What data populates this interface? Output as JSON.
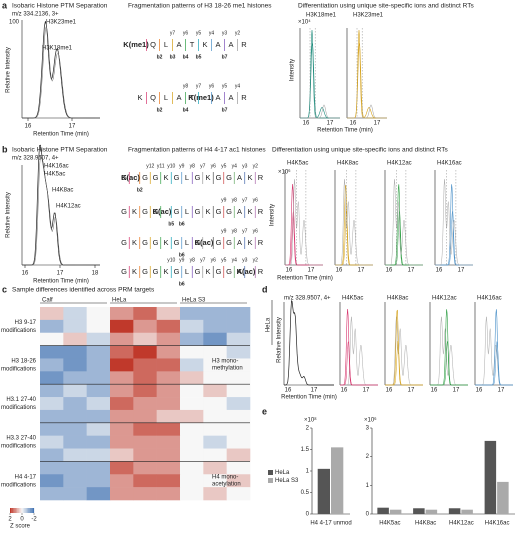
{
  "figure": {
    "a": {
      "label": "a",
      "title": "Isobaric Histone PTM Separation",
      "mz": "m/z 334.2136, 3+",
      "y_label": "Relative Intensity",
      "y_top": "100",
      "x_label": "Retention Time (min)",
      "x_ticks": [
        "16",
        "17"
      ],
      "peaks": [
        "H3K23me1",
        "H3K18me1"
      ],
      "frag_title": "Fragmentation patterns of H3 18-26 me1 histones",
      "sequences": [
        {
          "residues": [
            "K(me1)",
            "Q",
            "L",
            "A",
            "T",
            "K",
            "A",
            "A",
            "R"
          ],
          "y_ions": [
            "y7",
            "y6",
            "y5",
            "y4",
            "y3",
            "y2"
          ],
          "b_ions": [
            "b2",
            "b3",
            "b4",
            "b5",
            "b7"
          ]
        },
        {
          "residues": [
            "K",
            "Q",
            "L",
            "A",
            "T",
            "K(me1)",
            "A",
            "A",
            "R"
          ],
          "y_ions": [
            "y8",
            "y7",
            "y6",
            "y5",
            "y4"
          ],
          "b_ions": [
            "b2",
            "b4",
            "b7"
          ]
        }
      ],
      "diff_title": "Differentiation using unique site-specific ions and distinct RTs",
      "diff_panels": [
        "H3K18me1",
        "H3K23me1"
      ],
      "diff_y_label": "Intensity",
      "diff_unit": "×10⁴",
      "diff_x_label": "Retention Time (min)",
      "diff_x_ticks": [
        "16",
        "17"
      ]
    },
    "b": {
      "label": "b",
      "title": "Isobaric Histone PTM Separation",
      "mz": "m/z 328.9507, 4+",
      "y_label": "Relative Intensity",
      "x_label": "Retention Time (min)",
      "x_ticks": [
        "16",
        "17",
        "18"
      ],
      "peaks": [
        "H4K16ac",
        "H4K5ac",
        "H4K8ac",
        "H4K12ac"
      ],
      "frag_title": "Fragmentation patterns of H4 4-17 ac1 histones",
      "sequences": [
        {
          "residues": [
            "G",
            "K(ac)",
            "G",
            "G",
            "K",
            "G",
            "L",
            "G",
            "K",
            "G",
            "G",
            "A",
            "K",
            "R"
          ],
          "y_ions": [
            "y12",
            "y11",
            "y10",
            "y9",
            "y8",
            "y7",
            "y6",
            "y5",
            "y4",
            "y3",
            "y2"
          ],
          "b_ions": [
            "b2"
          ]
        },
        {
          "residues": [
            "G",
            "K",
            "G",
            "G",
            "K(ac)",
            "G",
            "L",
            "G",
            "K",
            "G",
            "G",
            "A",
            "K",
            "R"
          ],
          "y_ions": [
            "y9",
            "y8",
            "y7",
            "y6"
          ],
          "b_ions": [
            "b5",
            "b6"
          ]
        },
        {
          "residues": [
            "G",
            "K",
            "G",
            "G",
            "K",
            "G",
            "L",
            "G",
            "K(ac)",
            "G",
            "G",
            "A",
            "K",
            "R"
          ],
          "y_ions": [
            "y9",
            "y8",
            "y7",
            "y6"
          ],
          "b_ions": [
            "b6"
          ]
        },
        {
          "residues": [
            "G",
            "K",
            "G",
            "G",
            "K",
            "G",
            "L",
            "G",
            "K",
            "G",
            "G",
            "A",
            "K(ac)",
            "R"
          ],
          "y_ions": [
            "y10",
            "y9",
            "y8",
            "y7",
            "y6",
            "y5",
            "y4",
            "y3",
            "y2"
          ],
          "b_ions": [
            "b6"
          ]
        }
      ],
      "diff_title": "Differentiation using unique site-specific ions and distinct RTs",
      "diff_panels": [
        "H4K5ac",
        "H4K8ac",
        "H4K12ac",
        "H4K16ac"
      ],
      "diff_y_label": "Intensity",
      "diff_unit": "×10⁶",
      "diff_x_label": "Retention Time (min)",
      "diff_x_ticks": [
        "16",
        "17"
      ]
    },
    "c": {
      "label": "c"
    },
    "d": {
      "label": "d",
      "row_label": "HeLa",
      "mz": "m/z 328.9507, 4+",
      "y_label": "Relative Intensity",
      "x_label": "Retention Time (min)",
      "x_ticks": [
        "16",
        "17"
      ],
      "panels": [
        "H4K5ac",
        "H4K8ac",
        "H4K12ac",
        "H4K16ac"
      ]
    },
    "e": {
      "label": "e"
    }
  },
  "chart_data": [
    {
      "type": "heatmap",
      "title": "Sample differences identified across PRM targets",
      "column_groups": [
        "Calf",
        "HeLa",
        "HeLa S3"
      ],
      "row_groups": [
        [
          "H3 9-17",
          "+ modifications"
        ],
        [
          "H3 18-26",
          "+ modifications"
        ],
        [
          "H3.1 27-40",
          "+ modifications"
        ],
        [
          "H3.3 27-40",
          "+ modifications"
        ],
        [
          "H4 4-17",
          "+ modifications"
        ]
      ],
      "annotations": [
        [
          "H3 mono-",
          "methylation"
        ],
        [
          "H4 mono-",
          "acetylation"
        ]
      ],
      "values": [
        [
          0.5,
          -0.5,
          0,
          1,
          1.5,
          0.5,
          -1,
          -1,
          -1
        ],
        [
          -1,
          -0.5,
          0,
          2,
          1,
          1.5,
          -0.5,
          -1,
          -1
        ],
        [
          0,
          0.5,
          -0.5,
          1,
          0.5,
          1,
          -1,
          -1.5,
          -0.5
        ],
        [
          -1.5,
          -1.5,
          -1,
          1.5,
          2,
          1,
          0,
          0,
          -0.5
        ],
        [
          -1,
          -1.5,
          -1,
          2,
          1.5,
          1.5,
          -0.5,
          0,
          0
        ],
        [
          -1.5,
          -1,
          -1,
          1,
          1.5,
          1,
          0.5,
          0,
          0
        ],
        [
          -1,
          -0.5,
          -1,
          1,
          1.5,
          1,
          0,
          0.5,
          0
        ],
        [
          -0.5,
          -1,
          -0.5,
          1.5,
          1,
          1,
          0,
          0,
          -0.5
        ],
        [
          -1,
          -1,
          -1,
          1,
          1,
          0.5,
          0.5,
          0,
          0
        ],
        [
          -1,
          -1,
          -0.5,
          1,
          1.5,
          1.5,
          0,
          0,
          0
        ],
        [
          -0.5,
          -1,
          -1,
          1,
          1,
          1,
          0,
          -0.5,
          0
        ],
        [
          -1,
          -0.5,
          -0.5,
          0.5,
          1,
          1,
          0,
          0,
          0.5
        ],
        [
          -1,
          -1,
          -1,
          1.5,
          1,
          1,
          0,
          0.5,
          0
        ],
        [
          -1.5,
          -1,
          -1,
          1,
          1.5,
          1.5,
          0,
          0,
          0.5
        ],
        [
          -1,
          -1,
          -1.5,
          1,
          1,
          1,
          0,
          0.5,
          0
        ]
      ],
      "zlim": [
        -2,
        2
      ],
      "colorbar_ticks": [
        2,
        0,
        -2
      ],
      "colorbar_label": "Z score",
      "high_color": "#c0392b",
      "mid_color": "#f7f7f7",
      "low_color": "#4575b4"
    },
    {
      "type": "bar",
      "categories": [
        "H4 4-17 unmod"
      ],
      "series": [
        {
          "name": "HeLa",
          "color": "#555555",
          "values": [
            1.05
          ]
        },
        {
          "name": "HeLa S3",
          "color": "#aaaaaa",
          "values": [
            1.55
          ]
        }
      ],
      "ylim": [
        0,
        2
      ],
      "yticks": [
        0,
        0.5,
        1,
        1.5,
        2
      ],
      "y_unit": "×10⁸",
      "legend": "left"
    },
    {
      "type": "bar",
      "categories": [
        "H4K5ac",
        "H4K8ac",
        "H4K12ac",
        "H4K16ac"
      ],
      "category_colors": [
        "#d6336c",
        "#d4a017",
        "#2e9e44",
        "#4a90c8"
      ],
      "series": [
        {
          "color": "#555555",
          "values": [
            0.22,
            0.2,
            0.2,
            2.55
          ]
        },
        {
          "color": "#aaaaaa",
          "values": [
            0.15,
            0.15,
            0.15,
            1.12
          ]
        }
      ],
      "ylim": [
        0,
        3
      ],
      "yticks": [
        0,
        1,
        2,
        3
      ],
      "y_unit": "×10⁶"
    }
  ]
}
